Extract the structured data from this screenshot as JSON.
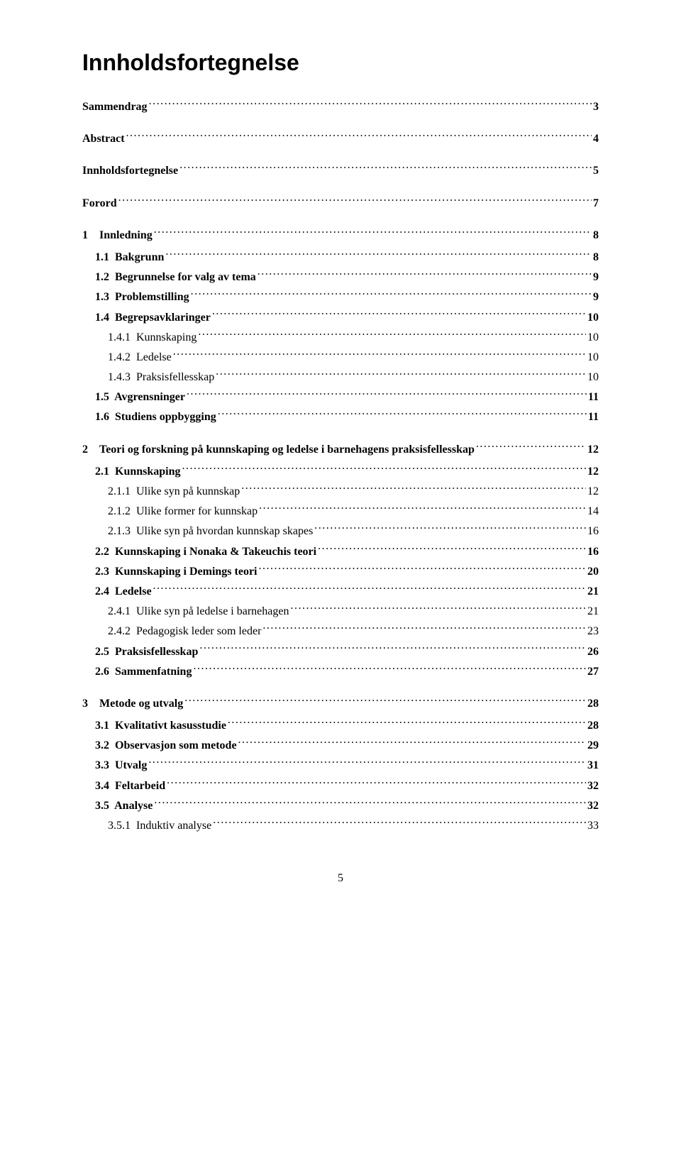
{
  "title": "Innholdsfortegnelse",
  "page_number": "5",
  "colors": {
    "background": "#ffffff",
    "text": "#000000"
  },
  "typography": {
    "title_font": "Arial",
    "title_size_pt": 24,
    "body_font": "Times New Roman",
    "body_size_pt": 12
  },
  "toc": [
    {
      "level": 1,
      "label": "Sammendrag",
      "page": "3"
    },
    {
      "level": 1,
      "label": "Abstract",
      "page": "4"
    },
    {
      "level": 1,
      "label": "Innholdsfortegnelse",
      "page": "5"
    },
    {
      "level": 1,
      "label": "Forord",
      "page": "7"
    },
    {
      "level": 1,
      "label": "1 Innledning",
      "page": "8"
    },
    {
      "level": 2,
      "label": "1.1  Bakgrunn",
      "page": "8"
    },
    {
      "level": 2,
      "label": "1.2  Begrunnelse for valg av tema",
      "page": "9"
    },
    {
      "level": 2,
      "label": "1.3  Problemstilling",
      "page": "9"
    },
    {
      "level": 2,
      "label": "1.4  Begrepsavklaringer",
      "page": "10"
    },
    {
      "level": 3,
      "label": "1.4.1  Kunnskaping",
      "page": "10"
    },
    {
      "level": 3,
      "label": "1.4.2  Ledelse",
      "page": "10"
    },
    {
      "level": 3,
      "label": "1.4.3  Praksisfellesskap",
      "page": "10"
    },
    {
      "level": 2,
      "label": "1.5  Avgrensninger",
      "page": "11"
    },
    {
      "level": 2,
      "label": "1.6  Studiens oppbygging",
      "page": "11"
    },
    {
      "level": 1,
      "label": "2 Teori og forskning på kunnskaping og ledelse i barnehagens praksisfellesskap",
      "page": "12"
    },
    {
      "level": 2,
      "label": "2.1  Kunnskaping",
      "page": "12"
    },
    {
      "level": 3,
      "label": "2.1.1  Ulike syn på kunnskap",
      "page": "12"
    },
    {
      "level": 3,
      "label": "2.1.2  Ulike former for kunnskap",
      "page": "14"
    },
    {
      "level": 3,
      "label": "2.1.3  Ulike syn på hvordan kunnskap skapes",
      "page": "16"
    },
    {
      "level": 2,
      "label": "2.2  Kunnskaping i Nonaka & Takeuchis teori",
      "page": "16"
    },
    {
      "level": 2,
      "label": "2.3  Kunnskaping i Demings teori",
      "page": "20"
    },
    {
      "level": 2,
      "label": "2.4  Ledelse",
      "page": "21"
    },
    {
      "level": 3,
      "label": "2.4.1  Ulike syn på ledelse i barnehagen",
      "page": "21"
    },
    {
      "level": 3,
      "label": "2.4.2  Pedagogisk leder som leder",
      "page": "23"
    },
    {
      "level": 2,
      "label": "2.5  Praksisfellesskap",
      "page": "26"
    },
    {
      "level": 2,
      "label": "2.6  Sammenfatning",
      "page": "27"
    },
    {
      "level": 1,
      "label": "3 Metode og utvalg",
      "page": "28"
    },
    {
      "level": 2,
      "label": "3.1  Kvalitativt kasusstudie",
      "page": "28"
    },
    {
      "level": 2,
      "label": "3.2  Observasjon som metode",
      "page": "29"
    },
    {
      "level": 2,
      "label": "3.3  Utvalg",
      "page": "31"
    },
    {
      "level": 2,
      "label": "3.4  Feltarbeid",
      "page": "32"
    },
    {
      "level": 2,
      "label": "3.5  Analyse",
      "page": "32"
    },
    {
      "level": 3,
      "label": "3.5.1  Induktiv analyse",
      "page": "33"
    }
  ]
}
